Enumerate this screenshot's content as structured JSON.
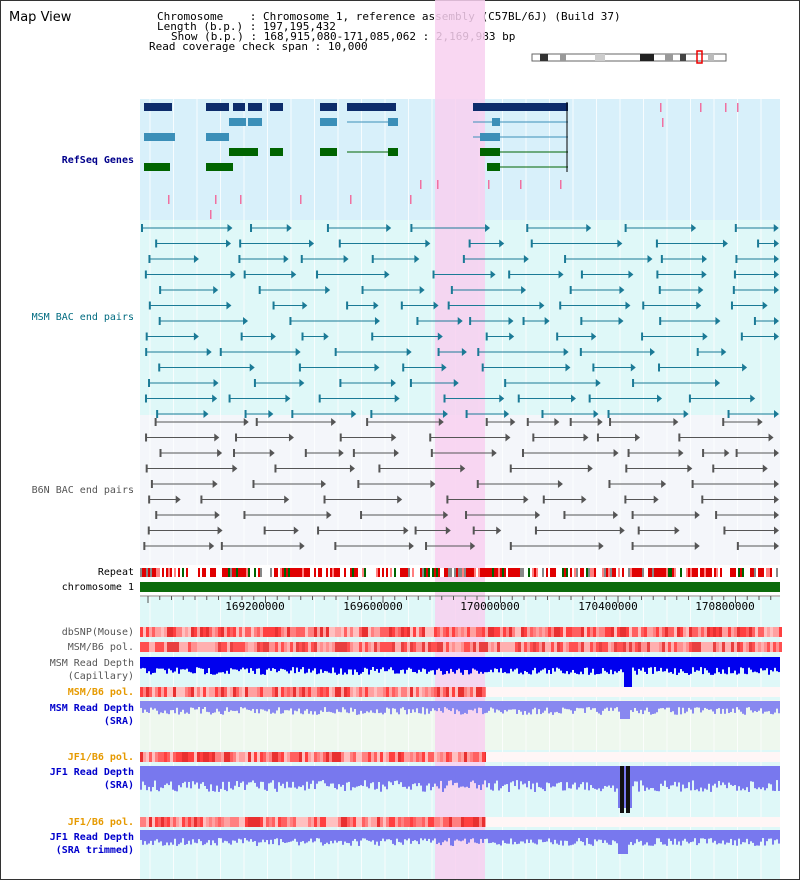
{
  "header": {
    "title": "Map View",
    "chromosome_label": "Chromosome",
    "chromosome_value": "Chromosome 1, reference assembly (C57BL/6J) (Build 37)",
    "length_label": "Length (b.p.)",
    "length_value": "197,195,432",
    "show_label": "Show (b.p.)",
    "show_value": "168,915,080-171,085,062 : 2,169,983 bp",
    "coverage_label": "Read coverage check span",
    "coverage_value": "10,000"
  },
  "tracks": {
    "refseq": "RefSeq Genes",
    "msm_bac": "MSM BAC end pairs",
    "b6n_bac": "B6N BAC end pairs",
    "repeat": "Repeat",
    "chromosome": "chromosome 1",
    "dbsnp": "dbSNP(Mouse)",
    "msm_b6_pol": "MSM/B6 pol.",
    "msm_read_depth_cap_1": "MSM Read Depth",
    "msm_read_depth_cap_2": "(Capillary)",
    "msm_b6_pol_sra": "MSM/B6 pol.",
    "msm_read_depth_sra_1": "MSM Read Depth",
    "msm_read_depth_sra_2": "(SRA)",
    "jf1_b6_pol": "JF1/B6 pol.",
    "jf1_read_depth_1": "JF1 Read Depth",
    "jf1_read_depth_2": "(SRA)",
    "jf1_b6_pol_trim": "JF1/B6 pol.",
    "jf1_read_depth_trim_1": "JF1 Read Depth",
    "jf1_read_depth_trim_2": "(SRA trimmed)"
  },
  "axis": {
    "ticks": [
      "169200000",
      "169600000",
      "170000000",
      "170400000",
      "170800000"
    ]
  },
  "colors": {
    "highlight": "#f8d0f0",
    "refseq_bg": "#d8f0fa",
    "bac_bg": "#dff8f8",
    "b6n_bg": "#f4f6fa",
    "gene_navy": "#0d2c6b",
    "gene_blue": "#3b8fb8",
    "gene_green": "#006400",
    "depth_blue": "#0000ee",
    "depth_light": "#7878ee"
  }
}
